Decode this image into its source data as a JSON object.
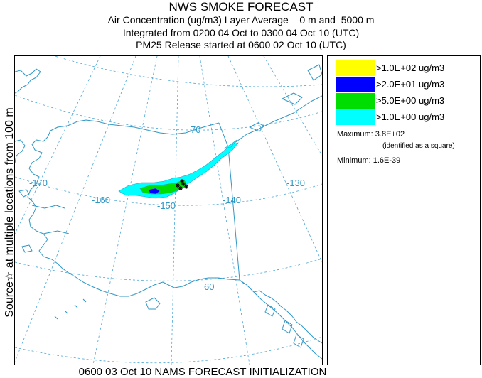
{
  "header": {
    "title": "NWS SMOKE FORECAST",
    "line1": "Air Concentration (ug/m3) Layer Average    0 m and  5000 m",
    "line2": "Integrated from 0200 04 Oct to 0300 04 Oct 10 (UTC)",
    "line3": "PM25 Release started at 0600 02 Oct 10 (UTC)"
  },
  "side_label": "Source☆   at multiple locations   from   100 m",
  "footer": "0600 03 Oct 10 NAMS FORECAST INITIALIZATION",
  "legend": {
    "items": [
      {
        "label": ">1.0E+02 ug/m3",
        "color": "#ffff00"
      },
      {
        "label": ">2.0E+01 ug/m3",
        "color": "#0000ff"
      },
      {
        "label": ">5.0E+00 ug/m3",
        "color": "#00dd00"
      },
      {
        "label": ">1.0E+00 ug/m3",
        "color": "#00ffff"
      }
    ],
    "maximum": "Maximum: 3.8E+02",
    "maximum_note": "(identified as a square)",
    "minimum": "Minimum: 1.6E-39"
  },
  "map": {
    "labels": {
      "lon170": "-170",
      "lon160": "-160",
      "lon150": "-150",
      "lon140": "-140",
      "lon130": "-130",
      "lat70": "70",
      "lat60": "60"
    },
    "colors": {
      "coast": "#2f97c6",
      "grid": "#4aa6d6",
      "border": "#2f97c6"
    }
  }
}
